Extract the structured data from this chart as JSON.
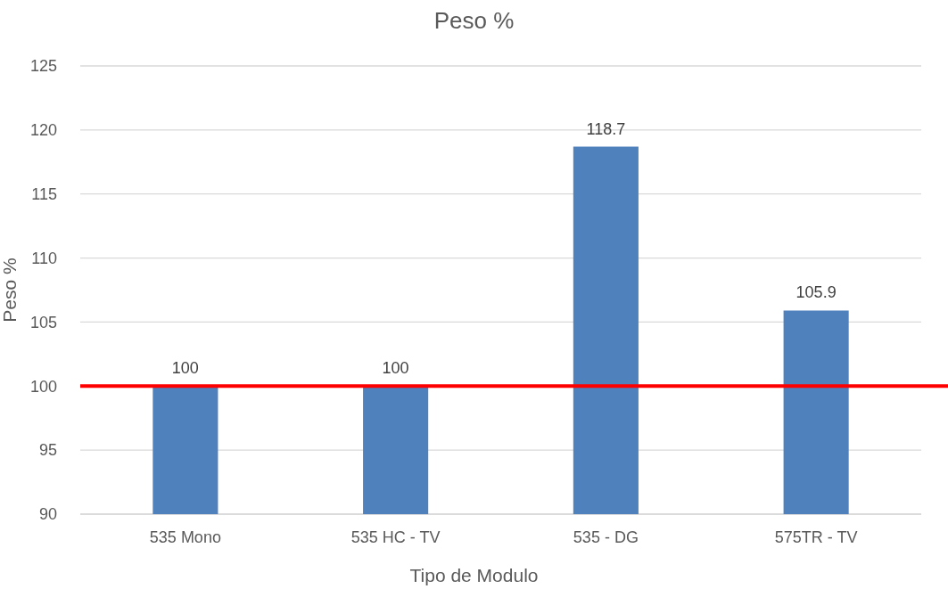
{
  "chart_data": {
    "type": "bar",
    "title": "Peso %",
    "xlabel": "Tipo de Modulo",
    "ylabel": "Peso %",
    "categories": [
      "535 Mono",
      "535 HC - TV",
      "535 - DG",
      "575TR - TV"
    ],
    "values": [
      100,
      100,
      118.7,
      105.9
    ],
    "color": "#4f81bd",
    "ylim": [
      90,
      125
    ],
    "yticks": [
      90,
      95,
      100,
      105,
      110,
      115,
      120,
      125
    ],
    "grid": "y",
    "data_labels": true,
    "ref_lines": [
      {
        "axis": "y",
        "value": 100,
        "color": "#ff0000",
        "line_style": "solid"
      }
    ]
  }
}
